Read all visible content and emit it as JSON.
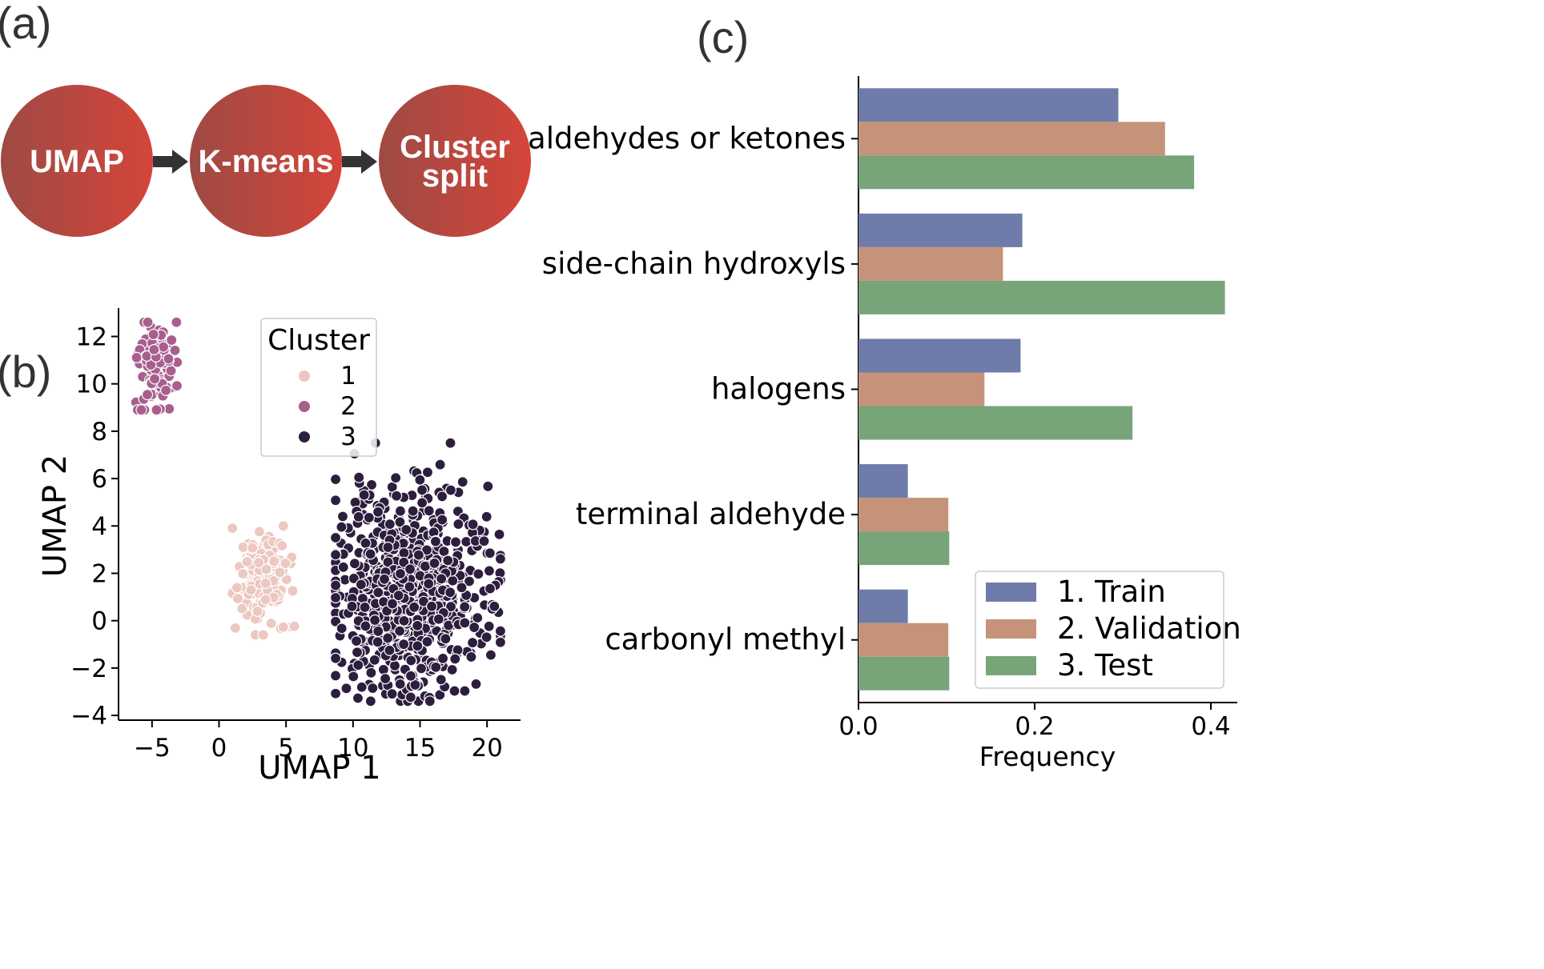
{
  "panels": {
    "a": "(a)",
    "b": "(b)",
    "c": "(c)"
  },
  "pipeline": {
    "steps": [
      "UMAP",
      "K-means",
      "Cluster split"
    ],
    "step_lines": [
      [
        "UMAP"
      ],
      [
        "K-means"
      ],
      [
        "Cluster",
        "split"
      ]
    ],
    "gradient": [
      "#9e4a44",
      "#d4453a"
    ],
    "arrow_color": "#333333"
  },
  "chart_data": [
    {
      "type": "scatter",
      "xlabel": "UMAP 1",
      "ylabel": "UMAP 2",
      "xlim": [
        -7.5,
        22.5
      ],
      "ylim": [
        -4.2,
        13.2
      ],
      "xticks": [
        -5,
        0,
        5,
        10,
        15,
        20
      ],
      "yticks": [
        -4,
        -2,
        0,
        2,
        4,
        6,
        8,
        10,
        12
      ],
      "legend": {
        "title": "Cluster",
        "position": "upper-center"
      },
      "series": [
        {
          "name": "1",
          "color": "#ecc8c0",
          "n": 160,
          "center": [
            3.3,
            1.8
          ],
          "spread": [
            0.9,
            1.0
          ],
          "region": {
            "x": [
              1.0,
              5.8
            ],
            "y": [
              -0.6,
              4.0
            ]
          }
        },
        {
          "name": "2",
          "color": "#a85f8e",
          "n": 110,
          "center": [
            -4.7,
            10.8
          ],
          "spread": [
            0.7,
            0.9
          ],
          "region": {
            "x": [
              -6.2,
              -3.0
            ],
            "y": [
              8.9,
              12.6
            ]
          }
        },
        {
          "name": "3",
          "color": "#2d1e3e",
          "n": 720,
          "center": [
            14.2,
            1.2
          ],
          "spread": [
            3.0,
            2.2
          ],
          "region": {
            "x": [
              8.7,
              21.0
            ],
            "y": [
              -3.4,
              7.5
            ]
          }
        }
      ]
    },
    {
      "type": "bar",
      "orientation": "horizontal",
      "xlabel": "Frequency",
      "ylabel": "",
      "xlim": [
        0.0,
        0.43
      ],
      "xticks": [
        0.0,
        0.2,
        0.4
      ],
      "xtick_labels": [
        "0.0",
        "0.2",
        "0.4"
      ],
      "categories": [
        "aldehydes or ketones",
        "side-chain hydroxyls",
        "halogens",
        "terminal aldehyde",
        "carbonyl methyl"
      ],
      "series": [
        {
          "name": "1. Train",
          "color": "#6f7ba8",
          "values": [
            0.295,
            0.186,
            0.184,
            0.056,
            0.056
          ]
        },
        {
          "name": "2. Validation",
          "color": "#c4937a",
          "values": [
            0.348,
            0.164,
            0.143,
            0.102,
            0.102
          ]
        },
        {
          "name": "3. Test",
          "color": "#78a47a",
          "values": [
            0.381,
            0.416,
            0.311,
            0.103,
            0.103
          ]
        }
      ],
      "legend": {
        "position": "lower-right"
      }
    }
  ]
}
